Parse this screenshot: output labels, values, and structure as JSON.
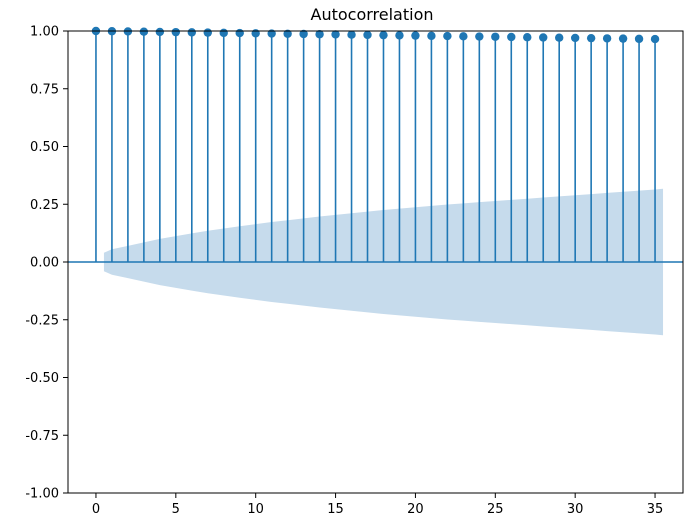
{
  "chart_data": {
    "type": "stem",
    "title": "Autocorrelation",
    "xlabel": "",
    "ylabel": "",
    "xlim": [
      -1.75,
      36.75
    ],
    "ylim": [
      -1.0,
      1.0
    ],
    "xticks": [
      0,
      5,
      10,
      15,
      20,
      25,
      30,
      35
    ],
    "yticks": [
      1.0,
      0.75,
      0.5,
      0.25,
      0.0,
      -0.25,
      -0.5,
      -0.75,
      -1.0
    ],
    "xtick_labels": [
      "0",
      "5",
      "10",
      "15",
      "20",
      "25",
      "30",
      "35"
    ],
    "ytick_labels": [
      "1.00",
      "0.75",
      "0.50",
      "0.25",
      "0.00",
      "-0.25",
      "-0.50",
      "-0.75",
      "-1.00"
    ],
    "grid": false,
    "series": [
      {
        "x": [
          0,
          1,
          2,
          3,
          4,
          5,
          6,
          7,
          8,
          9,
          10,
          11,
          12,
          13,
          14,
          15,
          16,
          17,
          18,
          19,
          20,
          21,
          22,
          23,
          24,
          25,
          26,
          27,
          28,
          29,
          30,
          31,
          32,
          33,
          34,
          35
        ],
        "values": [
          1.0,
          0.999,
          0.998,
          0.997,
          0.996,
          0.995,
          0.994,
          0.993,
          0.992,
          0.991,
          0.99,
          0.989,
          0.988,
          0.987,
          0.986,
          0.985,
          0.984,
          0.983,
          0.982,
          0.981,
          0.98,
          0.979,
          0.978,
          0.977,
          0.976,
          0.975,
          0.974,
          0.973,
          0.972,
          0.971,
          0.97,
          0.969,
          0.968,
          0.967,
          0.966,
          0.965
        ]
      }
    ],
    "confidence_band": {
      "x": [
        0.5,
        1,
        2,
        3,
        4,
        5,
        6,
        7,
        8,
        9,
        10,
        11,
        12,
        13,
        14,
        15,
        16,
        17,
        18,
        19,
        20,
        21,
        22,
        23,
        24,
        25,
        26,
        27,
        28,
        29,
        30,
        31,
        32,
        33,
        34,
        35,
        35.5
      ],
      "upper": [
        0.04,
        0.055,
        0.07,
        0.085,
        0.1,
        0.112,
        0.124,
        0.135,
        0.145,
        0.155,
        0.164,
        0.173,
        0.181,
        0.189,
        0.197,
        0.204,
        0.211,
        0.218,
        0.225,
        0.231,
        0.237,
        0.243,
        0.249,
        0.254,
        0.259,
        0.264,
        0.269,
        0.274,
        0.279,
        0.284,
        0.289,
        0.294,
        0.299,
        0.304,
        0.309,
        0.314,
        0.317
      ]
    },
    "colors": {
      "stem": "#1f77b4",
      "band": "#c6dbec",
      "axes": "#000000"
    }
  }
}
